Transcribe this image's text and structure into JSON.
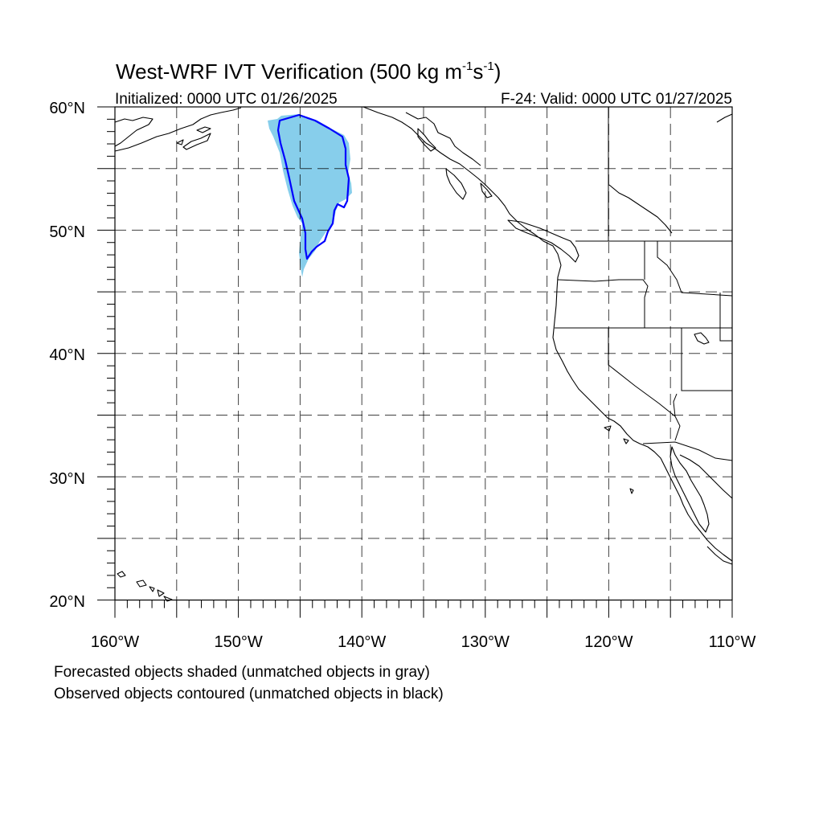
{
  "title": {
    "main_prefix": "West-WRF IVT Verification (500 kg m",
    "exp1": "-1",
    "middle": "s",
    "exp2": "-1",
    "suffix": ")"
  },
  "init_label": "Initialized: 0000 UTC 01/26/2025",
  "valid_label": "F-24: Valid: 0000 UTC 01/27/2025",
  "map": {
    "lon_range": [
      -160,
      -110
    ],
    "lat_range": [
      20,
      60
    ],
    "lat_labels": [
      {
        "value": 60,
        "text": "60°N"
      },
      {
        "value": 50,
        "text": "50°N"
      },
      {
        "value": 40,
        "text": "40°N"
      },
      {
        "value": 30,
        "text": "30°N"
      },
      {
        "value": 20,
        "text": "20°N"
      }
    ],
    "lon_labels": [
      {
        "value": -160,
        "text": "160°W"
      },
      {
        "value": -150,
        "text": "150°W"
      },
      {
        "value": -140,
        "text": "140°W"
      },
      {
        "value": -130,
        "text": "130°W"
      },
      {
        "value": -120,
        "text": "120°W"
      },
      {
        "value": -110,
        "text": "110°W"
      }
    ],
    "forecast_object_color": "#87ceeb",
    "observed_object_color": "#0000ff"
  },
  "footnotes": {
    "line1": "Forecasted objects shaded (unmatched objects in gray)",
    "line2": "Observed objects contoured (unmatched objects in black)"
  }
}
